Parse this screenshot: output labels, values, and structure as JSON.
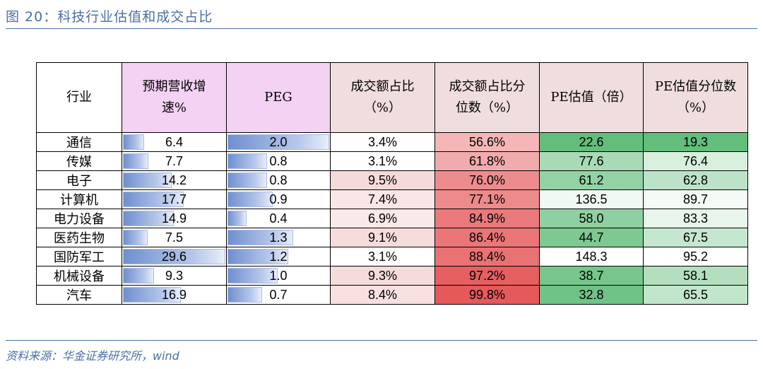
{
  "title": "图 20：科技行业估值和成交占比",
  "source": "资料来源：华金证券研究所，wind",
  "table": {
    "headers": {
      "industry": "行业",
      "growth_line1": "预期营收增",
      "growth_line2": "速%",
      "peg": "PEG",
      "share_line1": "成交额占比",
      "share_line2": "（%）",
      "share_pct_line1": "成交额占比分",
      "share_pct_line2": "位数（%）",
      "pe": "PE估值（倍）",
      "pe_pct_line1": "PE估值分位数",
      "pe_pct_line2": "（%）"
    },
    "rows": [
      {
        "industry": "通信",
        "growth": "6.4",
        "peg": "2.0",
        "share": "3.4%",
        "share_pct": "56.6%",
        "pe": "22.6",
        "pe_pct": "19.3"
      },
      {
        "industry": "传媒",
        "growth": "7.7",
        "peg": "0.8",
        "share": "3.1%",
        "share_pct": "61.8%",
        "pe": "77.6",
        "pe_pct": "76.4"
      },
      {
        "industry": "电子",
        "growth": "14.2",
        "peg": "0.8",
        "share": "9.5%",
        "share_pct": "76.0%",
        "pe": "61.2",
        "pe_pct": "62.8"
      },
      {
        "industry": "计算机",
        "growth": "17.7",
        "peg": "0.9",
        "share": "7.4%",
        "share_pct": "77.1%",
        "pe": "136.5",
        "pe_pct": "89.7"
      },
      {
        "industry": "电力设备",
        "growth": "14.9",
        "peg": "0.4",
        "share": "6.9%",
        "share_pct": "84.9%",
        "pe": "58.0",
        "pe_pct": "83.3"
      },
      {
        "industry": "医药生物",
        "growth": "7.5",
        "peg": "1.3",
        "share": "9.1%",
        "share_pct": "86.4%",
        "pe": "44.7",
        "pe_pct": "67.5"
      },
      {
        "industry": "国防军工",
        "growth": "29.6",
        "peg": "1.2",
        "share": "3.1%",
        "share_pct": "88.4%",
        "pe": "148.3",
        "pe_pct": "95.2"
      },
      {
        "industry": "机械设备",
        "growth": "9.3",
        "peg": "1.0",
        "share": "9.3%",
        "share_pct": "97.2%",
        "pe": "38.7",
        "pe_pct": "58.1"
      },
      {
        "industry": "汽车",
        "growth": "16.9",
        "peg": "0.7",
        "share": "8.4%",
        "share_pct": "99.8%",
        "pe": "32.8",
        "pe_pct": "65.5"
      }
    ]
  }
}
